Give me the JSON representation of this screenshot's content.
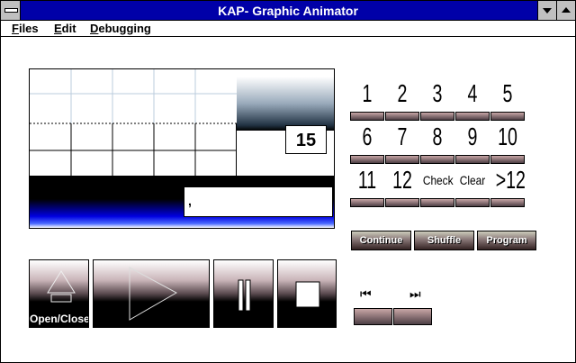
{
  "window": {
    "title": "KAP- Graphic Animator"
  },
  "menu": [
    "Files",
    "Edit",
    "Debugging"
  ],
  "display": {
    "counter": "15",
    "input_text": ","
  },
  "keypad": {
    "row1": [
      "1",
      "2",
      "3",
      "4",
      "5"
    ],
    "row2": [
      "6",
      "7",
      "8",
      "9",
      "10"
    ],
    "row3": [
      "11",
      "12",
      "Check",
      "Clear",
      ">12"
    ]
  },
  "controls": {
    "continue": "Continue",
    "shuffle": "Shuffle",
    "program": "Program"
  },
  "transport": {
    "open_close": "Open/Close",
    "rewind_icon": "⏮",
    "forward_icon": "⏭"
  },
  "colors": {
    "title_bar": "#0000a8",
    "display_blue": "#0000e0"
  }
}
